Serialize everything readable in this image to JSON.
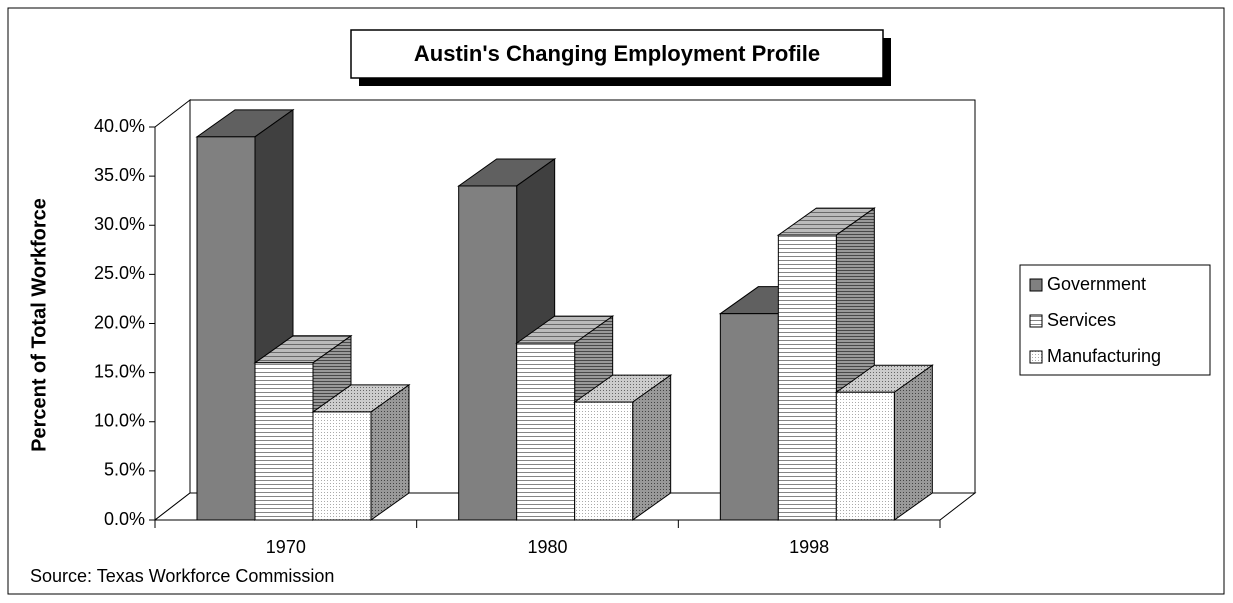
{
  "chart_data": {
    "type": "bar3d",
    "title": "Austin's Changing Employment Profile",
    "y_label": "Percent of Total Workforce",
    "source": "Source:  Texas Workforce Commission",
    "categories": [
      "1970",
      "1980",
      "1998"
    ],
    "series": [
      {
        "name": "Government",
        "color": "#808080",
        "values": [
          39,
          34,
          21
        ]
      },
      {
        "name": "Services",
        "color": "#ffffff",
        "values": [
          16,
          18,
          29
        ]
      },
      {
        "name": "Manufacturing",
        "color": "#f4f4f4",
        "values": [
          11,
          12,
          13
        ]
      }
    ],
    "ylim": [
      0,
      40
    ],
    "yticks": [
      {
        "value": 0,
        "label": "0.0%"
      },
      {
        "value": 5,
        "label": "5.0%"
      },
      {
        "value": 10,
        "label": "10.0%"
      },
      {
        "value": 15,
        "label": "15.0%"
      },
      {
        "value": 20,
        "label": "20.0%"
      },
      {
        "value": 25,
        "label": "25.0%"
      },
      {
        "value": 30,
        "label": "30.0%"
      },
      {
        "value": 35,
        "label": "35.0%"
      },
      {
        "value": 40,
        "label": "40.0%"
      }
    ],
    "legend": "right"
  }
}
